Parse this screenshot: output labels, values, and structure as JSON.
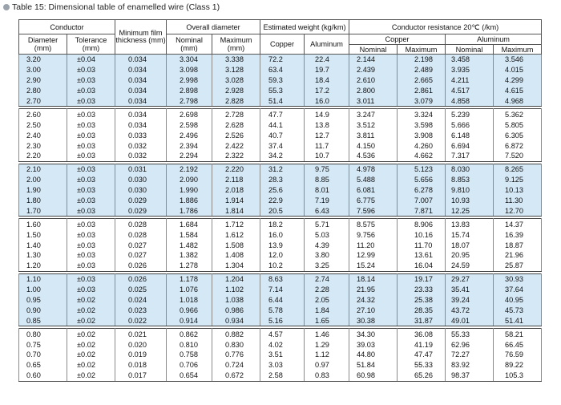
{
  "caption": "Table 15: Dimensional table of enamelled wire (Class 1)",
  "headers": {
    "conductor": "Conductor",
    "min_film": "Minimum film thickness (mm)",
    "overall": "Overall diameter",
    "weight": "Estimated weight (kg/km)",
    "resistance": "Conductor resistance  20℃  (/km)",
    "diameter": "Diameter (mm)",
    "tolerance": "Tolerance (mm)",
    "nominal_mm": "Nominal (mm)",
    "maximum_mm": "Maximum (mm)",
    "copper": "Copper",
    "aluminum": "Aluminum",
    "res_copper": "Copper",
    "res_aluminum": "Aluminum",
    "nominal": "Nominal",
    "maximum": "Maximum",
    "nominal2": "Nominal",
    "maximum2": "Maximum"
  },
  "groups": [
    {
      "rows": [
        [
          "3.20",
          "±0.04",
          "0.034",
          "3.304",
          "3.338",
          "72.2",
          "22.4",
          "2.144",
          "2.198",
          "3.458",
          "3.546"
        ],
        [
          "3.00",
          "±0.03",
          "0.034",
          "3.098",
          "3.128",
          "63.4",
          "19.7",
          "2.439",
          "2.489",
          "3.935",
          "4.015"
        ],
        [
          "2.90",
          "±0.03",
          "0.034",
          "2.998",
          "3.028",
          "59.3",
          "18.4",
          "2.610",
          "2.665",
          "4.211",
          "4.299"
        ],
        [
          "2.80",
          "±0.03",
          "0.034",
          "2.898",
          "2.928",
          "55.3",
          "17.2",
          "2.800",
          "2.861",
          "4.517",
          "4.615"
        ],
        [
          "2.70",
          "±0.03",
          "0.034",
          "2.798",
          "2.828",
          "51.4",
          "16.0",
          "3.011",
          "3.079",
          "4.858",
          "4.968"
        ]
      ]
    },
    {
      "rows": [
        [
          "2.60",
          "±0.03",
          "0.034",
          "2.698",
          "2.728",
          "47.7",
          "14.9",
          "3.247",
          "3.324",
          "5.239",
          "5.362"
        ],
        [
          "2.50",
          "±0.03",
          "0.034",
          "2.598",
          "2.628",
          "44.1",
          "13.8",
          "3.512",
          "3.598",
          "5.666",
          "5.805"
        ],
        [
          "2.40",
          "±0.03",
          "0.033",
          "2.496",
          "2.526",
          "40.7",
          "12.7",
          "3.811",
          "3.908",
          "6.148",
          "6.305"
        ],
        [
          "2.30",
          "±0.03",
          "0.032",
          "2.394",
          "2.422",
          "37.4",
          "11.7",
          "4.150",
          "4.260",
          "6.694",
          "6.872"
        ],
        [
          "2.20",
          "±0.03",
          "0.032",
          "2.294",
          "2.322",
          "34.2",
          "10.7",
          "4.536",
          "4.662",
          "7.317",
          "7.520"
        ]
      ]
    },
    {
      "rows": [
        [
          "2.10",
          "±0.03",
          "0.031",
          "2.192",
          "2.220",
          "31.2",
          "9.75",
          "4.978",
          "5.123",
          "8.030",
          "8.265"
        ],
        [
          "2.00",
          "±0.03",
          "0.030",
          "2.090",
          "2.118",
          "28.3",
          "8.85",
          "5.488",
          "5.656",
          "8.853",
          "9.125"
        ],
        [
          "1.90",
          "±0.03",
          "0.030",
          "1.990",
          "2.018",
          "25.6",
          "8.01",
          "6.081",
          "6.278",
          "9.810",
          "10.13"
        ],
        [
          "1.80",
          "±0.03",
          "0.029",
          "1.886",
          "1.914",
          "22.9",
          "7.19",
          "6.775",
          "7.007",
          "10.93",
          "11.30"
        ],
        [
          "1.70",
          "±0.03",
          "0.029",
          "1.786",
          "1.814",
          "20.5",
          "6.43",
          "7.596",
          "7.871",
          "12.25",
          "12.70"
        ]
      ]
    },
    {
      "rows": [
        [
          "1.60",
          "±0.03",
          "0.028",
          "1.684",
          "1.712",
          "18.2",
          "5.71",
          "8.575",
          "8.906",
          "13.83",
          "14.37"
        ],
        [
          "1.50",
          "±0.03",
          "0.028",
          "1.584",
          "1.612",
          "16.0",
          "5.03",
          "9.756",
          "10.16",
          "15.74",
          "16.39"
        ],
        [
          "1.40",
          "±0.03",
          "0.027",
          "1.482",
          "1.508",
          "13.9",
          "4.39",
          "11.20",
          "11.70",
          "18.07",
          "18.87"
        ],
        [
          "1.30",
          "±0.03",
          "0.027",
          "1.382",
          "1.408",
          "12.0",
          "3.80",
          "12.99",
          "13.61",
          "20.95",
          "21.96"
        ],
        [
          "1.20",
          "±0.03",
          "0.026",
          "1.278",
          "1.304",
          "10.2",
          "3.25",
          "15.24",
          "16.04",
          "24.59",
          "25.87"
        ]
      ]
    },
    {
      "rows": [
        [
          "1.10",
          "±0.03",
          "0.026",
          "1.178",
          "1.204",
          "8.63",
          "2.74",
          "18.14",
          "19.17",
          "29.27",
          "30.93"
        ],
        [
          "1.00",
          "±0.03",
          "0.025",
          "1.076",
          "1.102",
          "7.14",
          "2.28",
          "21.95",
          "23.33",
          "35.41",
          "37.64"
        ],
        [
          "0.95",
          "±0.02",
          "0.024",
          "1.018",
          "1.038",
          "6.44",
          "2.05",
          "24.32",
          "25.38",
          "39.24",
          "40.95"
        ],
        [
          "0.90",
          "±0.02",
          "0.023",
          "0.966",
          "0.986",
          "5.78",
          "1.84",
          "27.10",
          "28.35",
          "43.72",
          "45.73"
        ],
        [
          "0.85",
          "±0.02",
          "0.022",
          "0.914",
          "0.934",
          "5.16",
          "1.65",
          "30.38",
          "31.87",
          "49.01",
          "51.41"
        ]
      ]
    },
    {
      "rows": [
        [
          "0.80",
          "±0.02",
          "0.021",
          "0.862",
          "0.882",
          "4.57",
          "1.46",
          "34.30",
          "36.08",
          "55.33",
          "58.21"
        ],
        [
          "0.75",
          "±0.02",
          "0.020",
          "0.810",
          "0.830",
          "4.02",
          "1.29",
          "39.03",
          "41.19",
          "62.96",
          "66.45"
        ],
        [
          "0.70",
          "±0.02",
          "0.019",
          "0.758",
          "0.776",
          "3.51",
          "1.12",
          "44.80",
          "47.47",
          "72.27",
          "76.59"
        ],
        [
          "0.65",
          "±0.02",
          "0.018",
          "0.706",
          "0.724",
          "3.03",
          "0.97",
          "51.84",
          "55.33",
          "83.92",
          "89.22"
        ],
        [
          "0.60",
          "±0.02",
          "0.017",
          "0.654",
          "0.672",
          "2.58",
          "0.83",
          "60.98",
          "65.26",
          "98.37",
          "105.3"
        ]
      ]
    }
  ],
  "colors": {
    "band_blue": "#d4e8f6",
    "band_white": "#ffffff",
    "rule": "#444444"
  }
}
